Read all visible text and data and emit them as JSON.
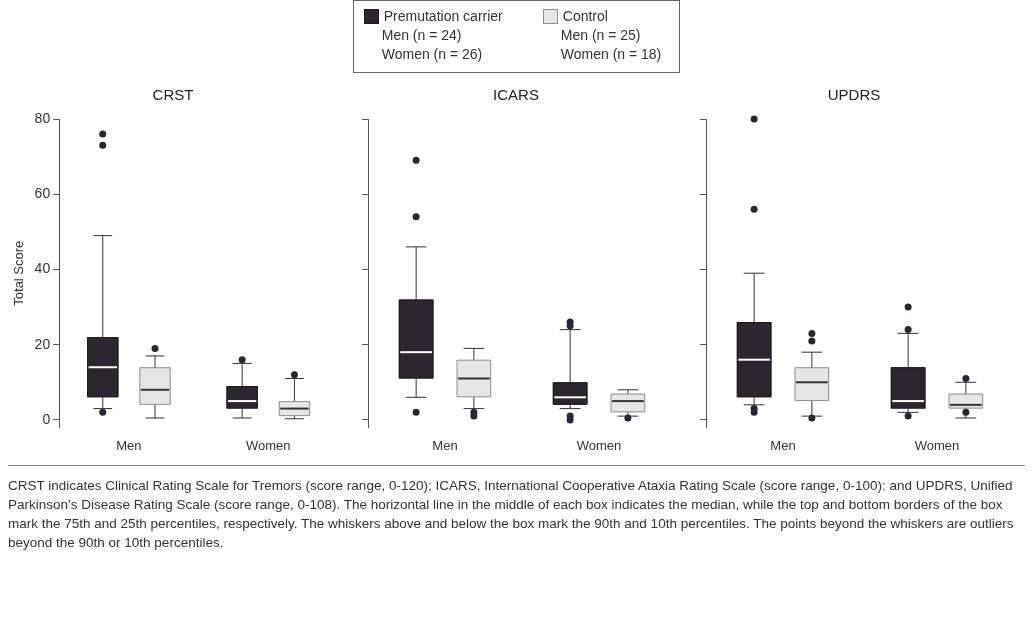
{
  "chart_data": [
    {
      "type": "box",
      "title": "CRST",
      "ylabel": "Total Score",
      "categories": [
        "Men",
        "Women"
      ],
      "ylim": [
        -2,
        80
      ],
      "yticks": [
        0,
        20,
        40,
        60,
        80
      ],
      "grid": false,
      "legend": "top",
      "annotations": [
        "Men (n = 24)",
        "Women (n = 26)",
        "Men (n = 25)",
        "Women (n = 18)"
      ],
      "series": [
        {
          "name": "Premutation carrier",
          "color": "#2b2630",
          "boxes": [
            {
              "low": 3,
              "q1": 6,
              "median": 14,
              "q3": 22,
              "high": 49,
              "outliers": [
                76,
                73,
                2
              ]
            },
            {
              "low": 0.5,
              "q1": 3,
              "median": 5,
              "q3": 9,
              "high": 15,
              "outliers": [
                16
              ]
            }
          ]
        },
        {
          "name": "Control",
          "color": "#e6e6e6",
          "boxes": [
            {
              "low": 0.5,
              "q1": 4,
              "median": 8,
              "q3": 14,
              "high": 17,
              "outliers": [
                19
              ]
            },
            {
              "low": 0.3,
              "q1": 1,
              "median": 3,
              "q3": 5,
              "high": 11,
              "outliers": [
                12
              ]
            }
          ]
        }
      ]
    },
    {
      "type": "box",
      "title": "ICARS",
      "categories": [
        "Men",
        "Women"
      ],
      "ylim": [
        -2,
        80
      ],
      "yticks": [
        0,
        20,
        40,
        60,
        80
      ],
      "grid": false,
      "tick_labels": "x",
      "series": [
        {
          "color": "#2b2630",
          "boxes": [
            {
              "low": 6,
              "q1": 11,
              "median": 18,
              "q3": 32,
              "high": 46,
              "outliers": [
                69,
                54,
                2
              ]
            },
            {
              "low": 3,
              "q1": 4,
              "median": 6,
              "q3": 10,
              "high": 24,
              "outliers": [
                26,
                25,
                1,
                0
              ]
            }
          ]
        },
        {
          "color": "#e6e6e6",
          "boxes": [
            {
              "low": 3,
              "q1": 6,
              "median": 11,
              "q3": 16,
              "high": 19,
              "outliers": [
                2,
                1
              ]
            },
            {
              "low": 1,
              "q1": 2,
              "median": 5,
              "q3": 7,
              "high": 8,
              "outliers": [
                0.5
              ]
            }
          ]
        }
      ]
    },
    {
      "type": "box",
      "title": "UPDRS",
      "categories": [
        "Men",
        "Women"
      ],
      "ylim": [
        -2,
        80
      ],
      "yticks": [
        0,
        20,
        40,
        60,
        80
      ],
      "grid": false,
      "tick_labels": "x",
      "series": [
        {
          "color": "#2b2630",
          "boxes": [
            {
              "low": 4,
              "q1": 6,
              "median": 16,
              "q3": 26,
              "high": 39,
              "outliers": [
                80,
                56,
                3,
                2
              ]
            },
            {
              "low": 2,
              "q1": 3,
              "median": 5,
              "q3": 14,
              "high": 23,
              "outliers": [
                30,
                24,
                1
              ]
            }
          ]
        },
        {
          "color": "#e6e6e6",
          "boxes": [
            {
              "low": 1,
              "q1": 5,
              "median": 10,
              "q3": 14,
              "high": 18,
              "outliers": [
                23,
                21,
                0.5
              ]
            },
            {
              "low": 0.5,
              "q1": 3,
              "median": 4,
              "q3": 7,
              "high": 10,
              "outliers": [
                11,
                2
              ]
            }
          ]
        }
      ]
    },
    {
      "type": "other",
      "annotations": [
        "CRST indicates Clinical Rating Scale for Tremors (score range, 0-120); ICARS, International Cooperative Ataxia Rating Scale (score range, 0-100): and UPDRS, Unified Parkinson’s Disease Rating Scale (score range, 0-108). The horizontal line in the middle of each box indicates the median, while the top and bottom borders of the box mark the 75th and 25th percentiles, respectively. The whiskers above and below the box mark the 90th and 10th percentiles. The points beyond the whiskers are outliers beyond the 90th or 10th percentiles."
      ]
    }
  ]
}
